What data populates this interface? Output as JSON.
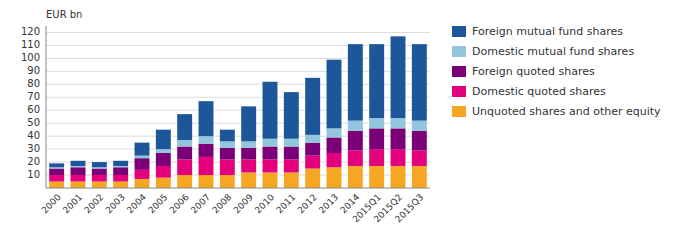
{
  "chart_data": {
    "type": "bar",
    "stacked": true,
    "grid": true,
    "legend": "right",
    "ylabel": "EUR bn",
    "categories": [
      "2000",
      "2001",
      "2002",
      "2003",
      "2004",
      "2005",
      "2006",
      "2007",
      "2008",
      "2009",
      "2010",
      "2011",
      "2012",
      "2013",
      "2014",
      "2015Q1",
      "2015Q2",
      "2015Q3"
    ],
    "series": [
      {
        "name": "Unquoted shares and other equity",
        "color": "#f5a623",
        "values": [
          5,
          5,
          5,
          5,
          7,
          8,
          10,
          10,
          10,
          12,
          12,
          12,
          15,
          16,
          17,
          17,
          17,
          17
        ]
      },
      {
        "name": "Domestic quoted shares",
        "color": "#e3007d",
        "values": [
          5,
          5,
          5,
          5,
          7,
          9,
          12,
          14,
          12,
          10,
          10,
          10,
          10,
          11,
          12,
          13,
          13,
          12
        ]
      },
      {
        "name": "Foreign quoted shares",
        "color": "#7b0077",
        "values": [
          5,
          6,
          5,
          6,
          9,
          10,
          10,
          10,
          9,
          9,
          10,
          10,
          10,
          12,
          15,
          16,
          16,
          15
        ]
      },
      {
        "name": "Domestic mutual fund shares",
        "color": "#92c5de",
        "values": [
          1,
          1,
          1,
          1,
          2,
          3,
          5,
          6,
          5,
          5,
          6,
          6,
          6,
          7,
          8,
          8,
          8,
          8
        ]
      },
      {
        "name": "Foreign mutual fund shares",
        "color": "#1e5799",
        "values": [
          3,
          4,
          4,
          4,
          10,
          15,
          20,
          27,
          9,
          27,
          44,
          36,
          44,
          53,
          59,
          57,
          63,
          59
        ]
      }
    ],
    "ylim": [
      0,
      125
    ],
    "yticks": [
      10,
      20,
      30,
      40,
      50,
      60,
      70,
      80,
      90,
      100,
      110,
      120
    ]
  }
}
